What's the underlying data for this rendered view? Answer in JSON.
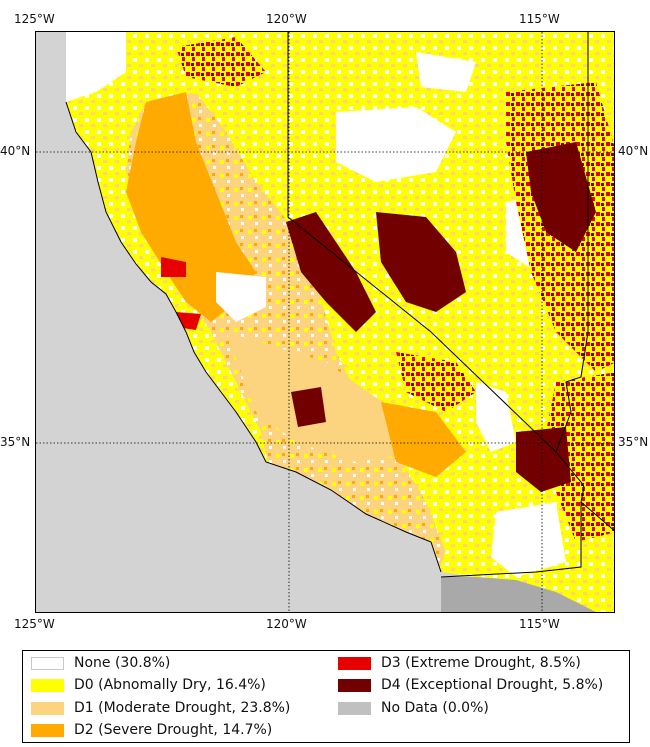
{
  "axes": {
    "top_ticks": [
      "125°W",
      "120°W",
      "115°W"
    ],
    "bottom_ticks": [
      "125°W",
      "120°W",
      "115°W"
    ],
    "left_ticks": [
      "40°N",
      "35°N"
    ],
    "right_ticks": [
      "40°N",
      "35°N"
    ]
  },
  "legend": [
    {
      "label": "None (30.8%)",
      "color": "#ffffff"
    },
    {
      "label": "D0 (Abnomally Dry, 16.4%)",
      "color": "#ffff00"
    },
    {
      "label": "D1 (Moderate Drought, 23.8%)",
      "color": "#fcd37f"
    },
    {
      "label": "D2 (Severe Drought, 14.7%)",
      "color": "#ffaa00"
    },
    {
      "label": "D3 (Extreme Drought, 8.5%)",
      "color": "#e60000"
    },
    {
      "label": "D4 (Exceptional Drought, 5.8%)",
      "color": "#730000"
    },
    {
      "label": "No Data (0.0%)",
      "color": "#c0c0c0"
    }
  ],
  "colors": {
    "ocean": "#d3d3d3",
    "mexico": "#a9a9a9",
    "none": "#ffffff",
    "d0": "#ffff00",
    "d1": "#fcd37f",
    "d2": "#ffaa00",
    "d3": "#e60000",
    "d4": "#730000"
  }
}
